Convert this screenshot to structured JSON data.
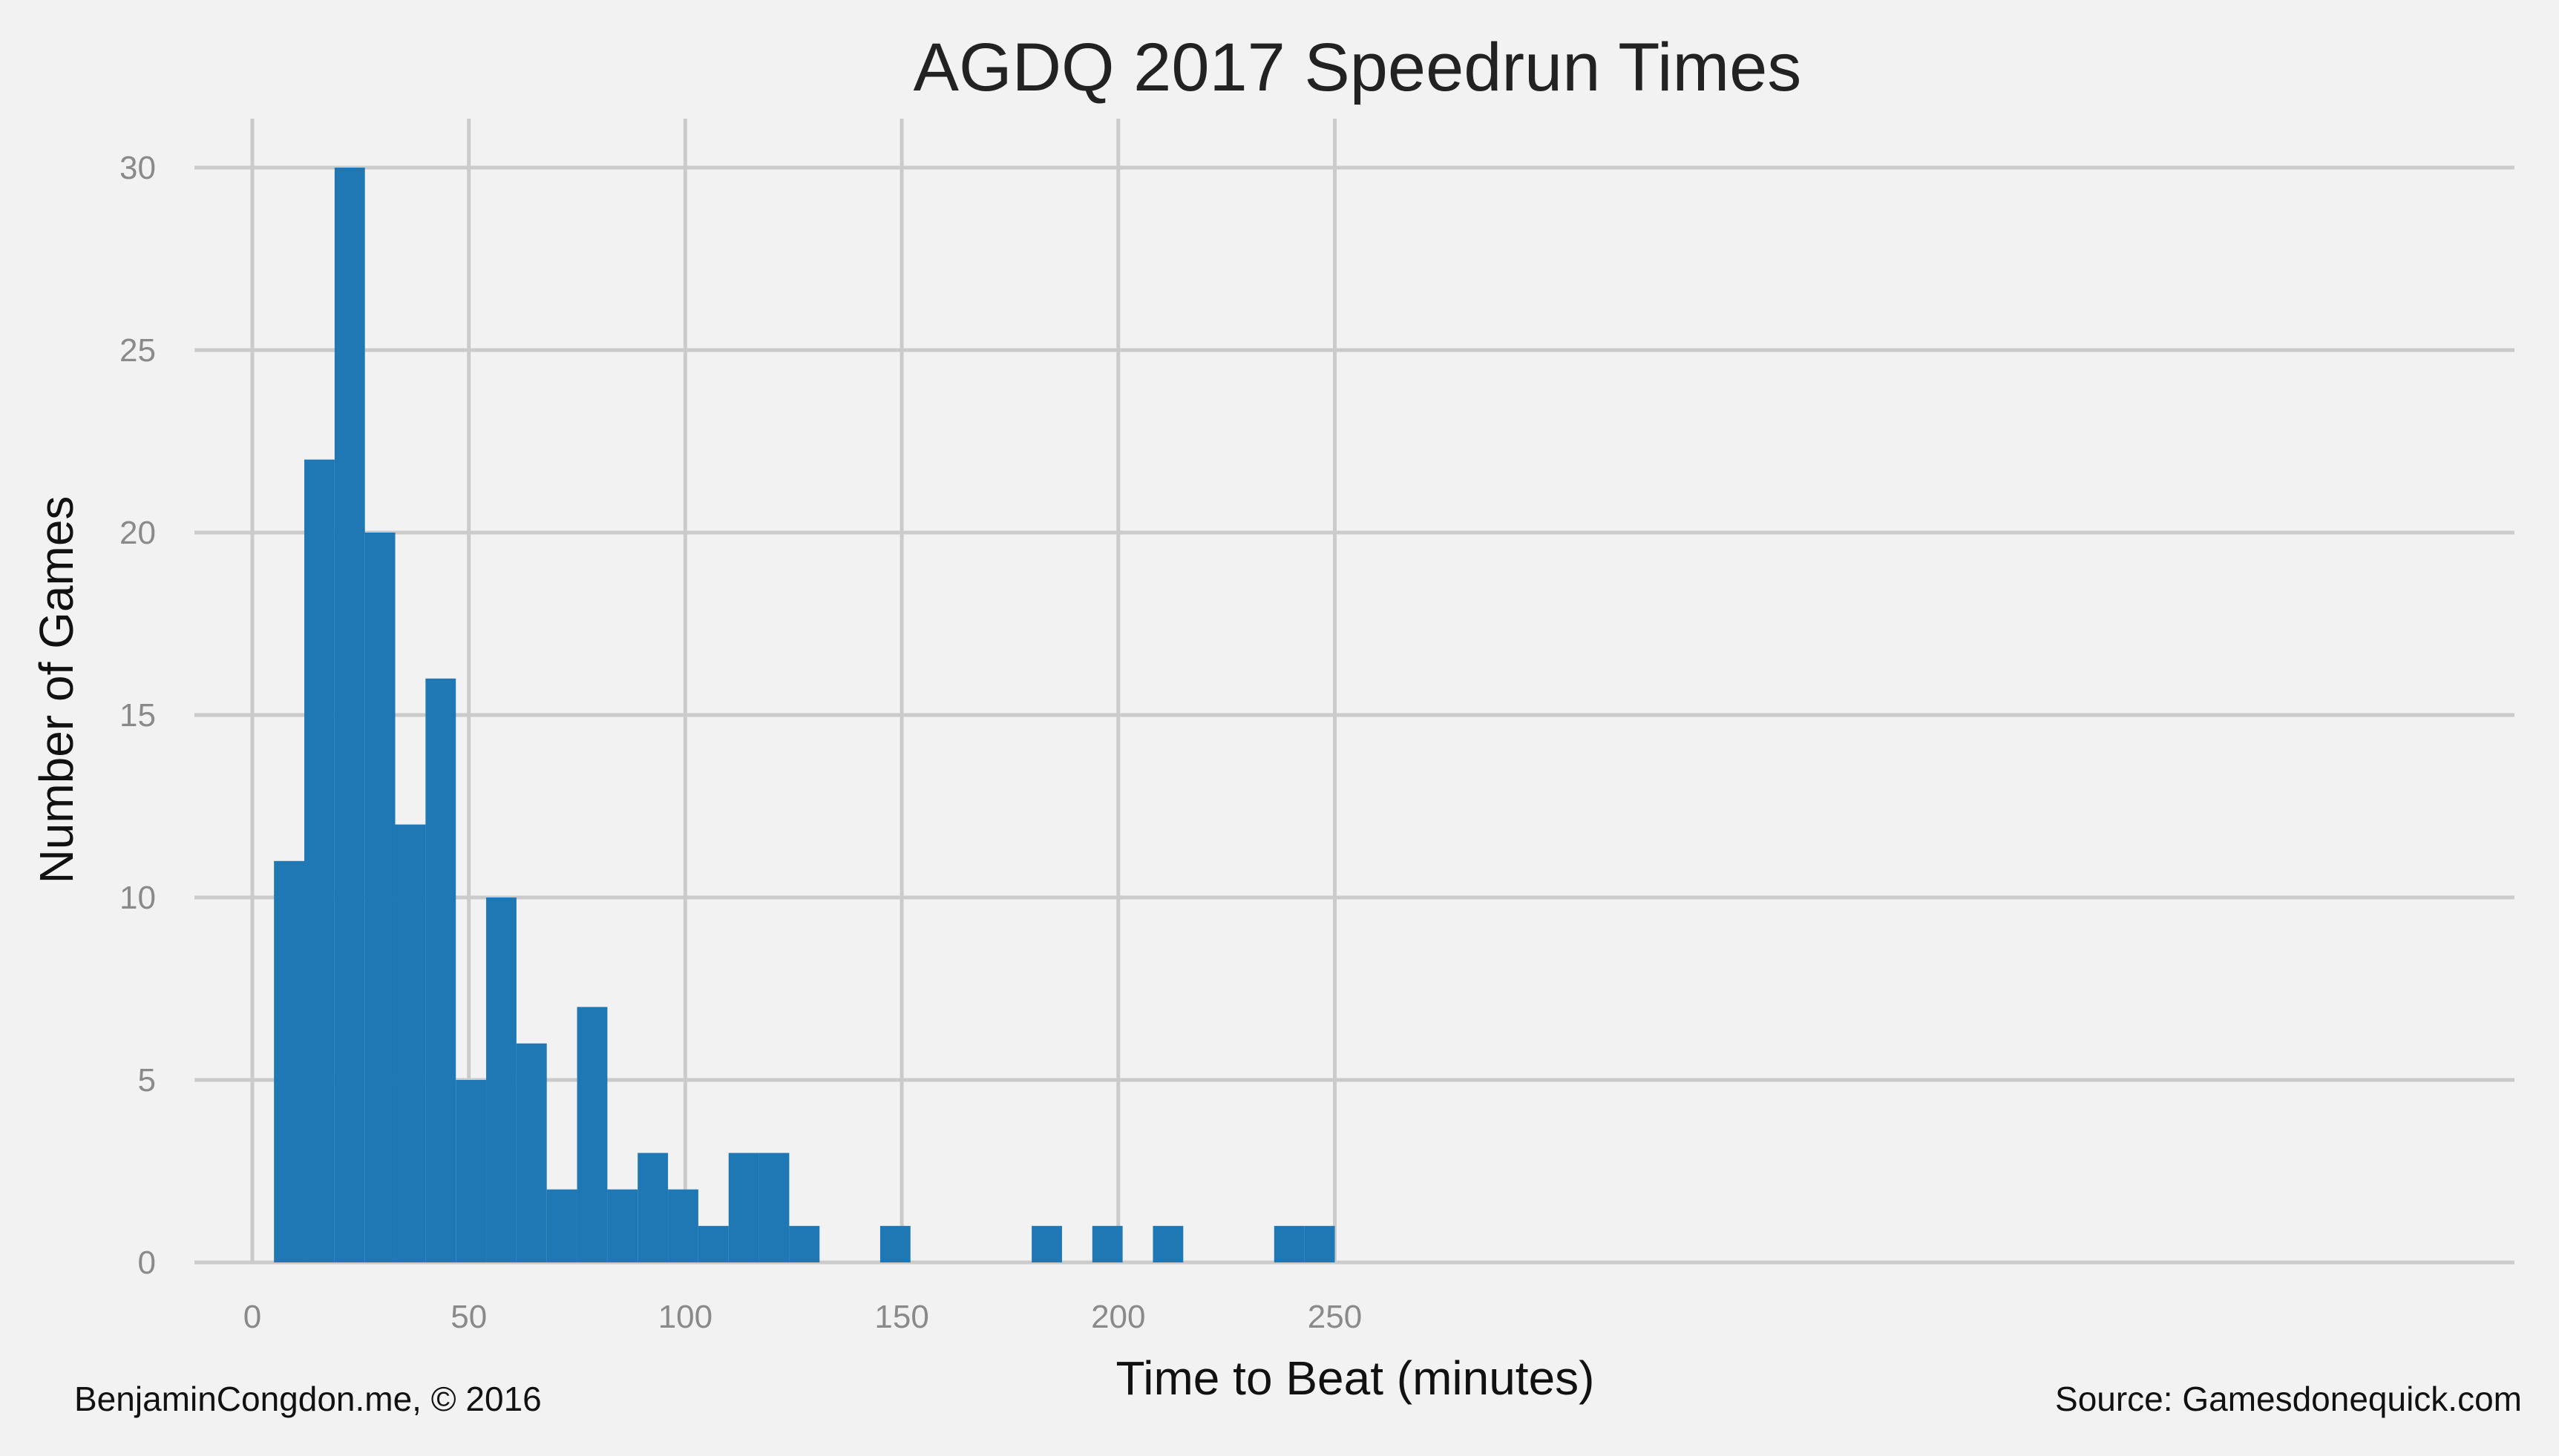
{
  "chart_data": {
    "type": "bar",
    "title": "AGDQ 2017 Speedrun Times",
    "xlabel": "Time to Beat (minutes)",
    "ylabel": "Number of Games",
    "xlim": [
      -4,
      260
    ],
    "ylim": [
      0,
      31.5
    ],
    "xticks": [
      0,
      50,
      100,
      150,
      200,
      250
    ],
    "yticks": [
      0,
      5,
      10,
      15,
      20,
      25,
      30
    ],
    "grid": true,
    "bar_color": "#1f77b4",
    "bins": [
      {
        "x0": 5,
        "x1": 12,
        "value": 11
      },
      {
        "x0": 12,
        "x1": 19,
        "value": 22
      },
      {
        "x0": 19,
        "x1": 26,
        "value": 30
      },
      {
        "x0": 26,
        "x1": 33,
        "value": 20
      },
      {
        "x0": 33,
        "x1": 40,
        "value": 12
      },
      {
        "x0": 40,
        "x1": 47,
        "value": 16
      },
      {
        "x0": 47,
        "x1": 54,
        "value": 5
      },
      {
        "x0": 54,
        "x1": 61,
        "value": 10
      },
      {
        "x0": 61,
        "x1": 68,
        "value": 6
      },
      {
        "x0": 68,
        "x1": 75,
        "value": 2
      },
      {
        "x0": 75,
        "x1": 82,
        "value": 7
      },
      {
        "x0": 82,
        "x1": 89,
        "value": 2
      },
      {
        "x0": 89,
        "x1": 96,
        "value": 3
      },
      {
        "x0": 96,
        "x1": 103,
        "value": 2
      },
      {
        "x0": 103,
        "x1": 110,
        "value": 1
      },
      {
        "x0": 110,
        "x1": 117,
        "value": 3
      },
      {
        "x0": 117,
        "x1": 124,
        "value": 3
      },
      {
        "x0": 124,
        "x1": 131,
        "value": 1
      },
      {
        "x0": 145,
        "x1": 152,
        "value": 1
      },
      {
        "x0": 180,
        "x1": 187,
        "value": 1
      },
      {
        "x0": 194,
        "x1": 201,
        "value": 1
      },
      {
        "x0": 208,
        "x1": 215,
        "value": 1
      },
      {
        "x0": 236,
        "x1": 243,
        "value": 1
      },
      {
        "x0": 243,
        "x1": 250,
        "value": 1
      }
    ]
  },
  "footer": {
    "credit": "BenjaminCongdon.me, © 2016",
    "source": "Source: Gamesdonequick.com"
  }
}
